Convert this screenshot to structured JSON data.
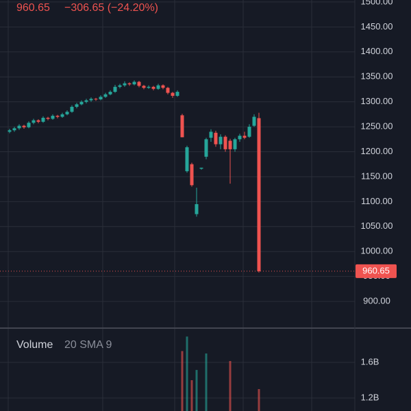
{
  "chart_data": {
    "type": "candlestick",
    "change": "−306.65 (−24.20%)",
    "volume_title": "Volume",
    "volume_params": "20 SMA 9",
    "up_color": "#26a69a",
    "down_color": "#ef5350",
    "ylim": [
      848,
      1504
    ],
    "yticks": [
      {
        "value": 1500,
        "label": "1500.00"
      },
      {
        "value": 1450,
        "label": "1450.00"
      },
      {
        "value": 1400,
        "label": "1400.00"
      },
      {
        "value": 1350,
        "label": "1350.00"
      },
      {
        "value": 1300,
        "label": "1300.00"
      },
      {
        "value": 1250,
        "label": "1250.00"
      },
      {
        "value": 1200,
        "label": "1200.00"
      },
      {
        "value": 1150,
        "label": "1150.00"
      },
      {
        "value": 1100,
        "label": "1100.00"
      },
      {
        "value": 1050,
        "label": "1050.00"
      },
      {
        "value": 1000,
        "label": "1000.00"
      },
      {
        "value": 950,
        "label": "950.00"
      },
      {
        "value": 900,
        "label": "900.00"
      }
    ],
    "volume_ylim": [
      1054000000,
      1977000000
    ],
    "volume_yticks": [
      {
        "value": 1600000000,
        "label": "1.6B"
      },
      {
        "value": 1200000000,
        "label": "1.2B"
      }
    ],
    "ohlc": [
      [
        1240,
        1246,
        1237,
        1243
      ],
      [
        1243,
        1250,
        1240,
        1247
      ],
      [
        1247,
        1255,
        1244,
        1252
      ],
      [
        1252,
        1254,
        1246,
        1249
      ],
      [
        1249,
        1261,
        1247,
        1258
      ],
      [
        1258,
        1266,
        1255,
        1263
      ],
      [
        1263,
        1265,
        1257,
        1260
      ],
      [
        1260,
        1271,
        1258,
        1268
      ],
      [
        1268,
        1270,
        1263,
        1266
      ],
      [
        1266,
        1275,
        1264,
        1272
      ],
      [
        1272,
        1274,
        1267,
        1270
      ],
      [
        1270,
        1278,
        1268,
        1275
      ],
      [
        1275,
        1283,
        1273,
        1280
      ],
      [
        1280,
        1293,
        1278,
        1290
      ],
      [
        1290,
        1298,
        1287,
        1295
      ],
      [
        1295,
        1303,
        1293,
        1300
      ],
      [
        1300,
        1306,
        1297,
        1303
      ],
      [
        1303,
        1309,
        1300,
        1306
      ],
      [
        1306,
        1308,
        1302,
        1305
      ],
      [
        1305,
        1313,
        1303,
        1310
      ],
      [
        1310,
        1318,
        1308,
        1315
      ],
      [
        1315,
        1323,
        1313,
        1320
      ],
      [
        1320,
        1334,
        1318,
        1330
      ],
      [
        1330,
        1336,
        1327,
        1333
      ],
      [
        1333,
        1341,
        1330,
        1337
      ],
      [
        1337,
        1339,
        1332,
        1335
      ],
      [
        1335,
        1343,
        1333,
        1340
      ],
      [
        1340,
        1342,
        1329,
        1332
      ],
      [
        1332,
        1334,
        1325,
        1328
      ],
      [
        1328,
        1333,
        1326,
        1330
      ],
      [
        1330,
        1332,
        1323,
        1326
      ],
      [
        1326,
        1336,
        1324,
        1333
      ],
      [
        1333,
        1335,
        1325,
        1328
      ],
      [
        1328,
        1330,
        1315,
        1318
      ],
      [
        1318,
        1320,
        1308,
        1312
      ],
      [
        1312,
        1323,
        1310,
        1320
      ],
      [
        1273,
        1276,
        1229,
        1229
      ],
      [
        1161,
        1212,
        1158,
        1209
      ],
      [
        1175,
        1178,
        1130,
        1133
      ],
      [
        1075,
        1128,
        1070,
        1095
      ],
      [
        1166,
        1168,
        1164,
        1168
      ],
      [
        1190,
        1228,
        1185,
        1225
      ],
      [
        1228,
        1245,
        1220,
        1240
      ],
      [
        1238,
        1242,
        1210,
        1215
      ],
      [
        1215,
        1235,
        1205,
        1230
      ],
      [
        1230,
        1233,
        1200,
        1205
      ],
      [
        1222,
        1226,
        1136,
        1205
      ],
      [
        1205,
        1228,
        1200,
        1225
      ],
      [
        1225,
        1236,
        1220,
        1232
      ],
      [
        1232,
        1240,
        1225,
        1228
      ],
      [
        1230,
        1255,
        1228,
        1250
      ],
      [
        1252,
        1275,
        1250,
        1270
      ],
      [
        1267.3,
        1278,
        958,
        960.65
      ]
    ],
    "volume": [
      null,
      null,
      null,
      null,
      null,
      null,
      null,
      null,
      null,
      null,
      null,
      null,
      null,
      null,
      null,
      null,
      null,
      null,
      null,
      null,
      null,
      null,
      null,
      null,
      null,
      null,
      null,
      null,
      null,
      null,
      null,
      null,
      null,
      null,
      null,
      null,
      1727000000,
      1890000000,
      1400000000,
      1515000000,
      null,
      1700000000,
      null,
      null,
      null,
      null,
      1615000000,
      null,
      null,
      null,
      null,
      null,
      1300000000
    ]
  }
}
